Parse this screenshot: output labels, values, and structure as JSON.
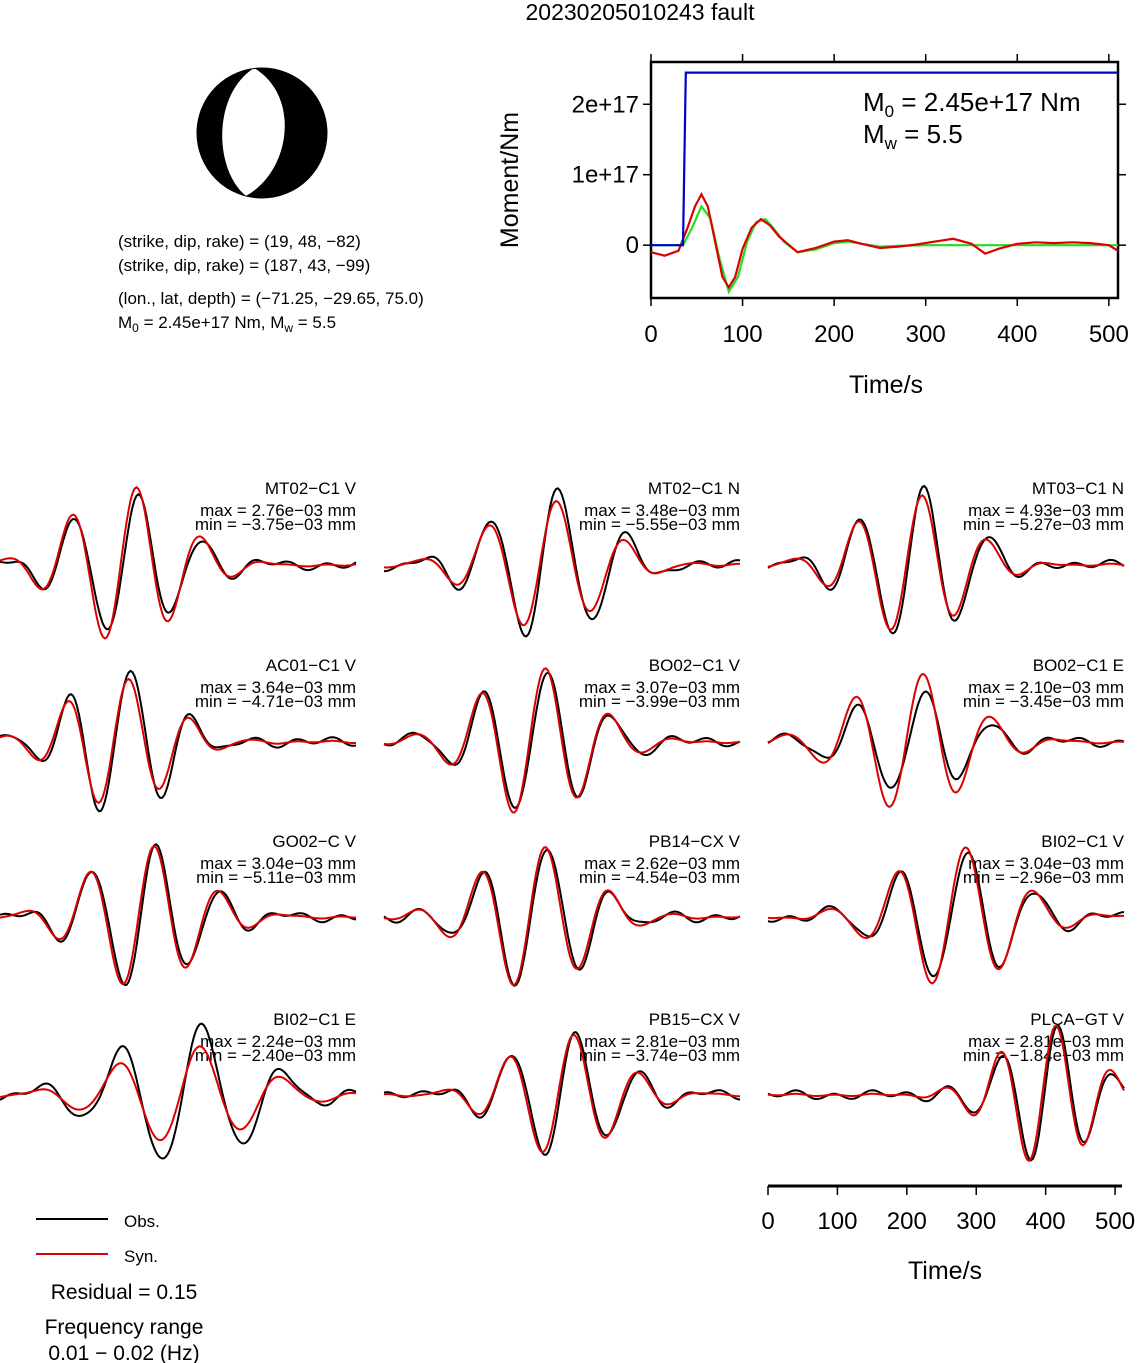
{
  "title": "20230205010243 fault",
  "focal": {
    "line1": "(strike, dip, rake) = (19, 48, −82)",
    "line2": "(strike, dip, rake) = (187, 43, −99)",
    "line3": "(lon., lat, depth) = (−71.25, −29.65, 75.0)",
    "line4_a": "M",
    "line4_sub": "0",
    "line4_b": " = 2.45e+17 Nm, M",
    "line4_sub2": "w",
    "line4_c": " = 5.5"
  },
  "moment_panel": {
    "ylabel": "Moment/Nm",
    "xlabel": "Time/s",
    "yticks": [
      "0",
      "1e+17",
      "2e+17"
    ],
    "xticks": [
      "0",
      "100",
      "200",
      "300",
      "400",
      "500"
    ],
    "m0_a": "M",
    "m0_sub": "0",
    "m0_b": " = 2.45e+17 Nm",
    "mw_a": "M",
    "mw_sub": "w",
    "mw_b": " = 5.5"
  },
  "waveforms": [
    {
      "label": "MT02−C1 V",
      "max": "max = 2.76e−03 mm",
      "min": "min = −3.75e−03 mm"
    },
    {
      "label": "MT02−C1 N",
      "max": "max = 3.48e−03 mm",
      "min": "min = −5.55e−03 mm"
    },
    {
      "label": "MT03−C1 N",
      "max": "max = 4.93e−03 mm",
      "min": "min = −5.27e−03 mm"
    },
    {
      "label": "AC01−C1 V",
      "max": "max = 3.64e−03 mm",
      "min": "min = −4.71e−03 mm"
    },
    {
      "label": "BO02−C1 V",
      "max": "max = 3.07e−03 mm",
      "min": "min = −3.99e−03 mm"
    },
    {
      "label": "BO02−C1 E",
      "max": "max = 2.10e−03 mm",
      "min": "min = −3.45e−03 mm"
    },
    {
      "label": "GO02−C V",
      "max": "max = 3.04e−03 mm",
      "min": "min = −5.11e−03 mm"
    },
    {
      "label": "PB14−CX V",
      "max": "max = 2.62e−03 mm",
      "min": "min = −4.54e−03 mm"
    },
    {
      "label": "BI02−C1 V",
      "max": "max = 3.04e−03 mm",
      "min": "min = −2.96e−03 mm"
    },
    {
      "label": "BI02−C1 E",
      "max": "max = 2.24e−03 mm",
      "min": "min = −2.40e−03 mm"
    },
    {
      "label": "PB15−CX V",
      "max": "max = 2.81e−03 mm",
      "min": "min = −3.74e−03 mm"
    },
    {
      "label": "PLCA−GT V",
      "max": "max = 2.81e−03 mm",
      "min": "min = −1.84e−03 mm"
    }
  ],
  "bottom_axis": {
    "xlabel": "Time/s",
    "xticks": [
      "0",
      "100",
      "200",
      "300",
      "400",
      "500"
    ]
  },
  "legend": {
    "obs": "Obs.",
    "syn": "Syn.",
    "residual": "Residual = 0.15",
    "freq_title": "Frequency range",
    "freq_value": "0.01 − 0.02 (Hz)"
  },
  "colors": {
    "obs": "#000000",
    "syn": "#dd0000",
    "moment_rate_green": "#22dd22",
    "cumulative_blue": "#0000cc"
  },
  "chart_data": [
    {
      "type": "line",
      "title": "",
      "xlabel": "Time/s",
      "ylabel": "Moment/Nm",
      "xlim": [
        0,
        510
      ],
      "ylim": [
        -7.5e+16,
        2.6e+17
      ],
      "series": [
        {
          "name": "",
          "color": "#0000cc",
          "x": [
            0,
            35,
            38,
            510
          ],
          "y": [
            0,
            0,
            2.45e+17,
            2.45e+17
          ]
        },
        {
          "name": "",
          "color": "#22dd22",
          "x": [
            0,
            35,
            45,
            55,
            65,
            75,
            85,
            95,
            105,
            115,
            125,
            135,
            145,
            160,
            180,
            200,
            215,
            230,
            250,
            270,
            300,
            330,
            360,
            400,
            450,
            510
          ],
          "y": [
            0,
            0,
            2.5e+16,
            5.5e+16,
            3.8e+16,
            -2e+16,
            -6.6e+16,
            -4.5e+16,
            5000000000000000.0,
            3.3e+16,
            3.7e+16,
            2.2e+16,
            5000000000000000.0,
            -1e+16,
            -6000000000000000.0,
            3000000000000000.0,
            5000000000000000.0,
            2000000000000000.0,
            -2000000000000000.0,
            -1000000000000000.0,
            0,
            0,
            0,
            0,
            0,
            0
          ]
        },
        {
          "name": "",
          "color": "#dd0000",
          "x": [
            0,
            15,
            30,
            40,
            48,
            55,
            62,
            70,
            78,
            85,
            92,
            100,
            110,
            120,
            130,
            140,
            160,
            180,
            200,
            215,
            230,
            250,
            270,
            290,
            310,
            330,
            350,
            365,
            380,
            400,
            420,
            440,
            460,
            480,
            500,
            510
          ],
          "y": [
            -1e+16,
            -1.5e+16,
            -8000000000000000.0,
            2.5e+16,
            5.5e+16,
            7.2e+16,
            5.5e+16,
            5000000000000000.0,
            -4.5e+16,
            -6e+16,
            -4.5e+16,
            -5000000000000000.0,
            2.5e+16,
            3.7e+16,
            2.8e+16,
            1.2e+16,
            -1e+16,
            -4000000000000000.0,
            5000000000000000.0,
            7000000000000000.0,
            2000000000000000.0,
            -4000000000000000.0,
            -2000000000000000.0,
            1000000000000000.0,
            5000000000000000.0,
            9000000000000000.0,
            2000000000000000.0,
            -1.2e+16,
            -5000000000000000.0,
            2000000000000000.0,
            4000000000000000.0,
            3000000000000000.0,
            4000000000000000.0,
            3000000000000000.0,
            0.0,
            -8000000000000000.0
          ]
        }
      ]
    }
  ]
}
